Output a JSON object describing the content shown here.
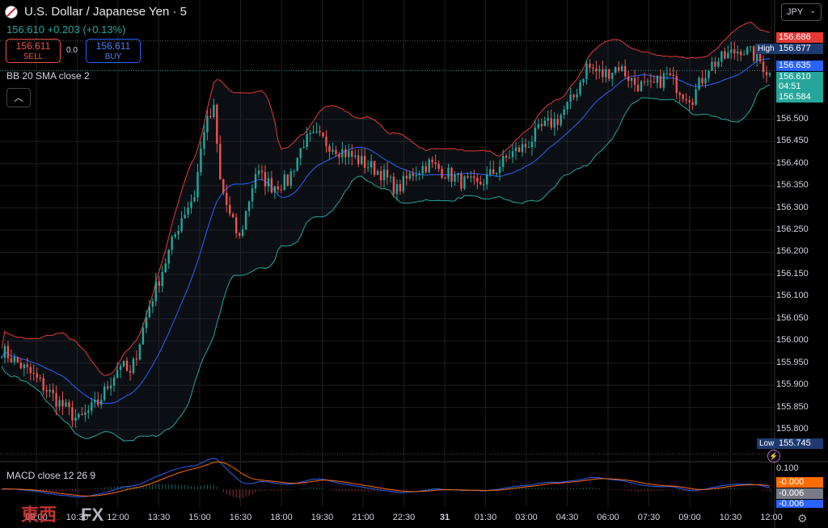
{
  "header": {
    "title": "U.S. Dollar / Japanese Yen · 5",
    "change": "156.610 +0.203 (+0.13%)"
  },
  "trade": {
    "sell_price": "156.611",
    "sell_label": "SELL",
    "spread": "0.0",
    "buy_price": "156.611",
    "buy_label": "BUY"
  },
  "indicators": {
    "bb_label": "BB 20 SMA close 2",
    "macd_label": "MACD close 12 26 9",
    "collapse_icon": "chevron-up-icon"
  },
  "currency": "JPY",
  "price_axis": {
    "ticks": [
      "156.500",
      "156.450",
      "156.400",
      "156.350",
      "156.300",
      "156.250",
      "156.200",
      "156.150",
      "156.100",
      "156.050",
      "156.000",
      "155.950",
      "155.900",
      "155.850",
      "155.800"
    ],
    "tags": {
      "bb_upper": "156.686",
      "high_label": "High",
      "high": "156.677",
      "bb_basis": "156.635",
      "last": "156.610",
      "countdown": "04:51",
      "bb_lower": "156.584",
      "low_label": "Low",
      "low": "155.745"
    },
    "colors": {
      "upper": "#e53935",
      "basis": "#2962ff",
      "last": "#26a69a",
      "high_low": "#1e3a6e"
    }
  },
  "macd_axis": {
    "ticks": [
      "0.100",
      "-0.000",
      "-0.006",
      "-0.006"
    ],
    "colors": [
      "#000000",
      "#ff6d00",
      "#787b86",
      "#2962ff"
    ]
  },
  "time_axis": [
    "09:00",
    "10:30",
    "12:00",
    "13:30",
    "15:00",
    "16:30",
    "18:00",
    "19:30",
    "21:00",
    "22:30",
    "31",
    "01:30",
    "03:00",
    "04:30",
    "06:00",
    "07:30",
    "09:00",
    "10:30",
    "12:00"
  ],
  "watermark": {
    "brand": "東西",
    "suffix": "FX"
  },
  "chart_data": {
    "type": "candlestick",
    "ylim": [
      155.74,
      156.7
    ],
    "anchors": [
      [
        0,
        155.98
      ],
      [
        10,
        155.92
      ],
      [
        18,
        155.86
      ],
      [
        24,
        155.82
      ],
      [
        30,
        155.86
      ],
      [
        37,
        155.95
      ],
      [
        40,
        155.92
      ],
      [
        46,
        156.08
      ],
      [
        52,
        156.2
      ],
      [
        56,
        156.28
      ],
      [
        60,
        156.33
      ],
      [
        63,
        156.48
      ],
      [
        66,
        156.52
      ],
      [
        68,
        156.36
      ],
      [
        71,
        156.28
      ],
      [
        74,
        156.23
      ],
      [
        79,
        156.38
      ],
      [
        84,
        156.35
      ],
      [
        89,
        156.36
      ],
      [
        94,
        156.45
      ],
      [
        98,
        156.46
      ],
      [
        103,
        156.44
      ],
      [
        108,
        156.42
      ],
      [
        113,
        156.4
      ],
      [
        118,
        156.38
      ],
      [
        123,
        156.34
      ],
      [
        128,
        156.38
      ],
      [
        133,
        156.4
      ],
      [
        138,
        156.38
      ],
      [
        143,
        156.36
      ],
      [
        148,
        156.35
      ],
      [
        153,
        156.38
      ],
      [
        158,
        156.42
      ],
      [
        163,
        156.44
      ],
      [
        168,
        156.48
      ],
      [
        173,
        156.5
      ],
      [
        178,
        156.55
      ],
      [
        182,
        156.62
      ],
      [
        187,
        156.6
      ],
      [
        192,
        156.62
      ],
      [
        197,
        156.58
      ],
      [
        202,
        156.57
      ],
      [
        207,
        156.6
      ],
      [
        212,
        156.56
      ],
      [
        215,
        156.55
      ],
      [
        220,
        156.62
      ],
      [
        225,
        156.64
      ],
      [
        230,
        156.66
      ],
      [
        235,
        156.64
      ],
      [
        239,
        156.6
      ]
    ],
    "bb": {
      "period": 20,
      "mult": 2
    },
    "macd": {
      "fast": 12,
      "slow": 26,
      "signal": 9
    }
  }
}
